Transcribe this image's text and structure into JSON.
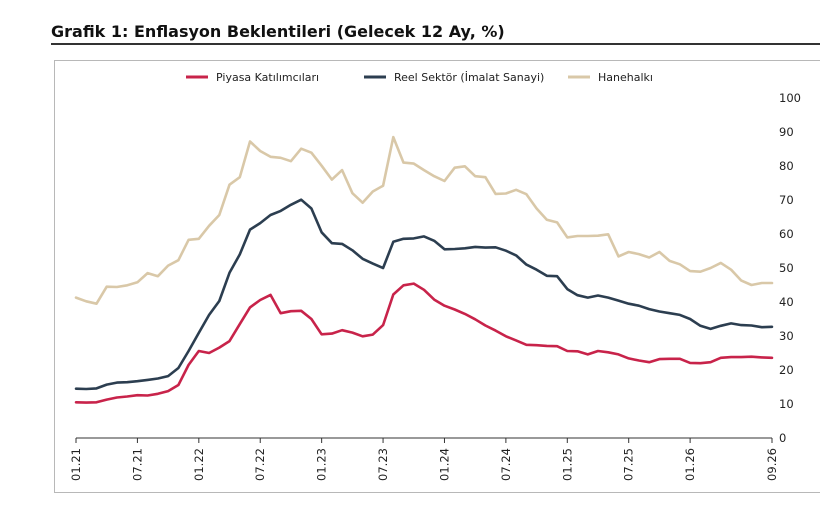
{
  "page": {
    "title": "Grafik 1: Enflasyon Beklentileri (Gelecek 12 Ay, %)"
  },
  "chart_data": {
    "type": "line",
    "title": "Grafik 1: Enflasyon Beklentileri (Gelecek 12 Ay, %)",
    "xlabel": "",
    "ylabel": "",
    "ylim": [
      0,
      100
    ],
    "yticks": [
      0,
      10,
      20,
      30,
      40,
      50,
      60,
      70,
      80,
      90,
      100
    ],
    "xticks": [
      "01.21",
      "07.21",
      "01.22",
      "07.22",
      "01.23",
      "07.23",
      "01.24",
      "07.24",
      "01.25",
      "07.25",
      "01.26",
      "09.26"
    ],
    "x": [
      "01.21",
      "02.21",
      "03.21",
      "04.21",
      "05.21",
      "06.21",
      "07.21",
      "08.21",
      "09.21",
      "10.21",
      "11.21",
      "12.21",
      "01.22",
      "02.22",
      "03.22",
      "04.22",
      "05.22",
      "06.22",
      "07.22",
      "08.22",
      "09.22",
      "10.22",
      "11.22",
      "12.22",
      "01.23",
      "02.23",
      "03.23",
      "04.23",
      "05.23",
      "06.23",
      "07.23",
      "08.23",
      "09.23",
      "10.23",
      "11.23",
      "12.23",
      "01.24",
      "02.24",
      "03.24",
      "04.24",
      "05.24",
      "06.24",
      "07.24",
      "08.24",
      "09.24",
      "10.24",
      "11.24",
      "12.24",
      "01.25",
      "02.25",
      "03.25",
      "04.25",
      "05.25",
      "06.25",
      "07.25",
      "08.25",
      "09.25",
      "10.25",
      "11.25",
      "12.25",
      "01.26",
      "02.26",
      "03.26",
      "04.26",
      "05.26",
      "06.26",
      "07.26",
      "08.26",
      "09.26"
    ],
    "legend_position": "top-center",
    "grid": false,
    "series": [
      {
        "name": "Piyasa Katılımcıları",
        "color": "#c8234a",
        "values": [
          10.5,
          10.4,
          10.5,
          11.3,
          11.9,
          12.2,
          12.6,
          12.5,
          13.0,
          13.8,
          15.6,
          21.5,
          25.6,
          25.0,
          26.6,
          28.5,
          33.5,
          38.4,
          40.6,
          42.1,
          36.7,
          37.3,
          37.4,
          35.0,
          30.5,
          30.7,
          31.7,
          31.0,
          29.9,
          30.4,
          33.2,
          42.2,
          44.9,
          45.4,
          43.6,
          40.7,
          38.9,
          37.8,
          36.5,
          34.9,
          33.1,
          31.6,
          29.9,
          28.7,
          27.4,
          27.3,
          27.1,
          27.0,
          25.6,
          25.5,
          24.6,
          25.6,
          25.2,
          24.6,
          23.4,
          22.8,
          22.3,
          23.2,
          23.3,
          23.3,
          22.1,
          22.0,
          22.3,
          23.6,
          23.8,
          23.8,
          23.9,
          23.7,
          23.6
        ]
      },
      {
        "name": "Reel Sektör (İmalat Sanayi)",
        "color": "#2c3e50",
        "values": [
          14.5,
          14.4,
          14.6,
          15.7,
          16.3,
          16.4,
          16.7,
          17.1,
          17.5,
          18.2,
          20.6,
          25.6,
          30.9,
          36.2,
          40.3,
          48.6,
          54.0,
          61.3,
          63.2,
          65.6,
          66.8,
          68.6,
          70.1,
          67.5,
          60.5,
          57.3,
          57.1,
          55.2,
          52.7,
          51.3,
          50.0,
          57.7,
          58.6,
          58.7,
          59.3,
          58.0,
          55.5,
          55.6,
          55.8,
          56.2,
          56.0,
          56.1,
          55.1,
          53.7,
          51.0,
          49.5,
          47.7,
          47.6,
          43.8,
          42.0,
          41.3,
          41.9,
          41.3,
          40.4,
          39.5,
          38.9,
          37.9,
          37.2,
          36.7,
          36.2,
          35.0,
          33.0,
          32.1,
          33.0,
          33.7,
          33.2,
          33.1,
          32.6,
          32.7
        ]
      },
      {
        "name": "Hanehalkı",
        "color": "#d9c8a8",
        "values": [
          41.3,
          40.2,
          39.5,
          44.5,
          44.4,
          44.9,
          45.8,
          48.5,
          47.6,
          50.7,
          52.3,
          58.3,
          58.6,
          62.4,
          65.6,
          74.5,
          76.7,
          87.2,
          84.4,
          82.7,
          82.4,
          81.4,
          85.1,
          83.9,
          80.1,
          76.0,
          78.8,
          72.0,
          69.2,
          72.5,
          74.2,
          88.5,
          81.0,
          80.7,
          78.8,
          77.0,
          75.6,
          79.5,
          79.9,
          77.0,
          76.7,
          71.8,
          71.9,
          73.0,
          71.7,
          67.5,
          64.2,
          63.4,
          59.0,
          59.4,
          59.4,
          59.5,
          59.9,
          53.4,
          54.7,
          54.1,
          53.1,
          54.7,
          52.1,
          51.1,
          49.1,
          48.9,
          50.0,
          51.5,
          49.5,
          46.3,
          45.0,
          45.6,
          45.6
        ]
      }
    ]
  }
}
